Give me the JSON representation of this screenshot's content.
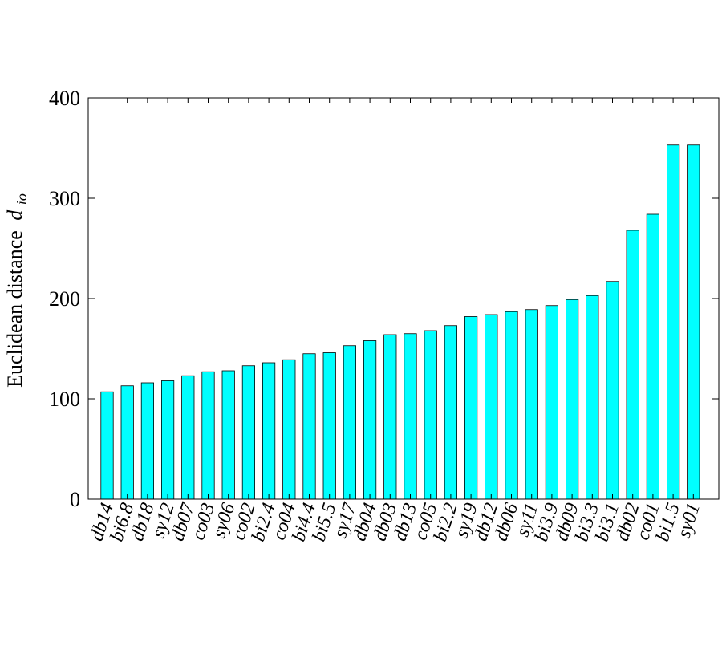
{
  "chart_data": {
    "type": "bar",
    "title": "",
    "xlabel": "",
    "ylabel": "Euclidean distance",
    "ylabel_var": "d",
    "ylabel_sub": "io",
    "ylim": [
      0,
      400
    ],
    "yticks": [
      0,
      100,
      200,
      300,
      400
    ],
    "grid": false,
    "legend": "none",
    "bar_color": "#00ffff",
    "categories": [
      "db14",
      "bi6.8",
      "db18",
      "sy12",
      "db07",
      "co03",
      "sy06",
      "co02",
      "bi2.4",
      "co04",
      "bi4.4",
      "bi5.5",
      "sy17",
      "db04",
      "db03",
      "db13",
      "co05",
      "bi2.2",
      "sy19",
      "db12",
      "db06",
      "sy11",
      "bi3.9",
      "db09",
      "bi3.3",
      "bi3.1",
      "db02",
      "co01",
      "bi1.5",
      "sy01"
    ],
    "values": [
      107,
      113,
      116,
      118,
      123,
      127,
      128,
      133,
      136,
      139,
      145,
      146,
      153,
      158,
      164,
      165,
      168,
      173,
      182,
      184,
      187,
      189,
      193,
      199,
      203,
      217,
      268,
      284,
      353,
      353
    ]
  }
}
